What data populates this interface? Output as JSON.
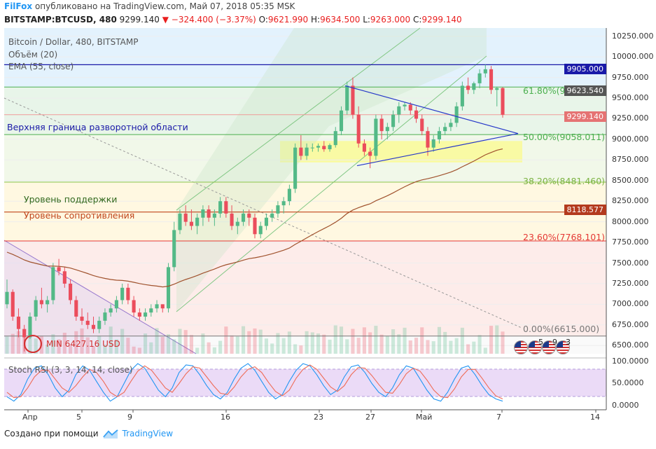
{
  "header": {
    "author": "FilFox",
    "published": "опубликовано на TradingView.com, Май 07, 2018 05:35 MSK",
    "symbol": "BITSTAMP:BTCUSD, 480",
    "last": "9299.140",
    "change": "−324.400 (−3.37%)",
    "o_label": "O:",
    "o": "9621.990",
    "h_label": "H:",
    "h": "9634.500",
    "l_label": "L:",
    "l": "9263.000",
    "c_label": "C:",
    "c": "9299.140"
  },
  "legend": {
    "title": "Bitcoin / Dollar, 480, BITSTAMP",
    "volume": "Объём (20)",
    "ema": "EMA (55, close)",
    "stoch": "Stoch RSI (3, 3, 14, 14, close)"
  },
  "annotations": {
    "upper_bound": "Верхняя граница разворотной области",
    "support": "Уровень поддержки",
    "resistance": "Уровень сопротивления",
    "min": "MIN 6427.16 USD"
  },
  "fib_labels": {
    "f618": "61.80%(9634.561)",
    "f50": "50.00%(9058.011)",
    "f382": "38.20%(8481.460)",
    "f236": "23.60%(7768.101)",
    "f0": "0.00%(6615.000)"
  },
  "price_labels": {
    "p1": "9905.000",
    "p2": "9623.540",
    "p3": "9299.140",
    "p4": "8118.577"
  },
  "price_label_colors": {
    "p1": "#1a1aa8",
    "p2": "#555555",
    "p3": "#e57373",
    "p4": "#b33a1e"
  },
  "y_axis": [
    "10250.000",
    "10000.000",
    "9750.000",
    "9500.000",
    "9250.000",
    "9000.000",
    "8750.000",
    "8500.000",
    "8250.000",
    "8000.000",
    "7750.000",
    "7500.000",
    "7250.000",
    "7000.000",
    "6750.000",
    "6500.000"
  ],
  "stoch_axis": [
    "100.0000",
    "50.0000",
    "0.0000"
  ],
  "x_axis": [
    "Апр",
    "5",
    "9",
    "16",
    "23",
    "27",
    "Май",
    "7",
    "14"
  ],
  "events": {
    "e1": "5",
    "e2": "9",
    "e3": "3"
  },
  "footer": {
    "created": "Создано при помощи",
    "brand": "TradingView"
  },
  "colors": {
    "up": "#53b987",
    "down": "#eb4d5c",
    "ema": "#a0522d",
    "fib618": "#4caf50",
    "fib50": "#4caf50",
    "fib382": "#8bc34a",
    "fib236": "#e53935",
    "fib0": "#777777",
    "upper_line": "#1a1aa8",
    "resistance_line": "#c0451b"
  },
  "chart_data": {
    "type": "candlestick",
    "y_scale": "linear",
    "ylim": [
      6400,
      10350
    ],
    "levels": {
      "upper_bound": 9905.0,
      "fib_61_8": 9634.561,
      "fib_50": 9058.011,
      "fib_38_2": 8481.46,
      "fib_23_6": 7768.101,
      "fib_0": 6615.0,
      "resistance": 8118.577,
      "last_close": 9299.14,
      "last_open": 9623.54
    },
    "candles": [
      [
        7000,
        7300,
        6950,
        7150
      ],
      [
        7150,
        7180,
        6800,
        6850
      ],
      [
        6850,
        6950,
        6600,
        6700
      ],
      [
        6700,
        6750,
        6427,
        6600
      ],
      [
        6600,
        6900,
        6580,
        6850
      ],
      [
        6850,
        7100,
        6800,
        7050
      ],
      [
        7050,
        7200,
        6950,
        7000
      ],
      [
        7000,
        7100,
        6900,
        7050
      ],
      [
        7050,
        7500,
        7000,
        7450
      ],
      [
        7450,
        7550,
        7350,
        7400
      ],
      [
        7400,
        7450,
        7200,
        7250
      ],
      [
        7250,
        7300,
        7000,
        7050
      ],
      [
        7050,
        7100,
        6800,
        6850
      ],
      [
        6850,
        6950,
        6750,
        6800
      ],
      [
        6800,
        6900,
        6700,
        6750
      ],
      [
        6750,
        6850,
        6650,
        6700
      ],
      [
        6700,
        6850,
        6650,
        6800
      ],
      [
        6800,
        6950,
        6750,
        6900
      ],
      [
        6900,
        7000,
        6850,
        6950
      ],
      [
        6950,
        7100,
        6900,
        7050
      ],
      [
        7050,
        7250,
        7000,
        7200
      ],
      [
        7200,
        7250,
        7000,
        7050
      ],
      [
        7050,
        7100,
        6850,
        6900
      ],
      [
        6900,
        6950,
        6800,
        6850
      ],
      [
        6850,
        6950,
        6800,
        6900
      ],
      [
        6900,
        7000,
        6850,
        6950
      ],
      [
        6950,
        7050,
        6900,
        7000
      ],
      [
        7000,
        7000,
        6900,
        6950
      ],
      [
        6950,
        7500,
        6900,
        7450
      ],
      [
        7450,
        8000,
        7400,
        7900
      ],
      [
        7900,
        8150,
        7850,
        8100
      ],
      [
        8100,
        8200,
        7950,
        8000
      ],
      [
        8000,
        8150,
        7900,
        7950
      ],
      [
        7950,
        8100,
        7850,
        8050
      ],
      [
        8050,
        8200,
        7950,
        8150
      ],
      [
        8150,
        8200,
        8000,
        8050
      ],
      [
        8050,
        8150,
        7950,
        8100
      ],
      [
        8100,
        8300,
        8050,
        8250
      ],
      [
        8250,
        8300,
        8050,
        8100
      ],
      [
        8100,
        8200,
        7900,
        7950
      ],
      [
        7950,
        8050,
        7850,
        8000
      ],
      [
        8000,
        8150,
        7950,
        8100
      ],
      [
        8100,
        8150,
        7950,
        8050
      ],
      [
        8050,
        8100,
        7800,
        7850
      ],
      [
        7850,
        8000,
        7800,
        7950
      ],
      [
        7950,
        8100,
        7900,
        8050
      ],
      [
        8050,
        8150,
        8000,
        8100
      ],
      [
        8100,
        8250,
        8050,
        8200
      ],
      [
        8200,
        8300,
        8100,
        8250
      ],
      [
        8250,
        8450,
        8200,
        8400
      ],
      [
        8400,
        8950,
        8350,
        8900
      ],
      [
        8900,
        9050,
        8750,
        8800
      ],
      [
        8800,
        8950,
        8750,
        8900
      ],
      [
        8900,
        8950,
        8850,
        8900
      ],
      [
        8900,
        8950,
        8850,
        8920
      ],
      [
        8920,
        8980,
        8850,
        8880
      ],
      [
        8880,
        8950,
        8850,
        8930
      ],
      [
        8930,
        9150,
        8900,
        9100
      ],
      [
        9100,
        9400,
        9050,
        9350
      ],
      [
        9350,
        9700,
        9300,
        9650
      ],
      [
        9650,
        9750,
        9250,
        9300
      ],
      [
        9300,
        9400,
        8900,
        8950
      ],
      [
        8950,
        9000,
        8800,
        8850
      ],
      [
        8850,
        8900,
        8650,
        8800
      ],
      [
        8800,
        9300,
        8750,
        9250
      ],
      [
        9250,
        9300,
        9000,
        9100
      ],
      [
        9100,
        9200,
        9000,
        9150
      ],
      [
        9150,
        9350,
        9100,
        9300
      ],
      [
        9300,
        9450,
        9200,
        9400
      ],
      [
        9400,
        9450,
        9350,
        9420
      ],
      [
        9420,
        9450,
        9300,
        9350
      ],
      [
        9350,
        9400,
        9200,
        9250
      ],
      [
        9250,
        9300,
        9050,
        9100
      ],
      [
        9100,
        9150,
        8800,
        8900
      ],
      [
        8900,
        9050,
        8850,
        9000
      ],
      [
        9000,
        9150,
        8950,
        9100
      ],
      [
        9100,
        9200,
        9050,
        9150
      ],
      [
        9150,
        9250,
        9100,
        9200
      ],
      [
        9200,
        9450,
        9150,
        9400
      ],
      [
        9400,
        9700,
        9350,
        9650
      ],
      [
        9650,
        9750,
        9550,
        9600
      ],
      [
        9600,
        9700,
        9550,
        9680
      ],
      [
        9680,
        9850,
        9620,
        9800
      ],
      [
        9800,
        9905,
        9750,
        9850
      ],
      [
        9850,
        9890,
        9550,
        9600
      ],
      [
        9600,
        9640,
        9400,
        9622
      ],
      [
        9622,
        9634,
        9263,
        9299
      ]
    ],
    "stoch_rsi": {
      "k": [
        20,
        10,
        25,
        60,
        85,
        90,
        70,
        40,
        20,
        35,
        70,
        90,
        80,
        55,
        30,
        10,
        20,
        50,
        80,
        95,
        85,
        60,
        35,
        20,
        40,
        75,
        92,
        90,
        70,
        45,
        25,
        15,
        30,
        60,
        85,
        95,
        80,
        55,
        30,
        15,
        25,
        55,
        80,
        95,
        90,
        70,
        45,
        25,
        35,
        65,
        88,
        92,
        75,
        50,
        30,
        20,
        40,
        70,
        90,
        85,
        60,
        35,
        15,
        10,
        30,
        60,
        85,
        90,
        70,
        45,
        25,
        15,
        10
      ],
      "d": [
        30,
        18,
        20,
        40,
        65,
        80,
        80,
        60,
        40,
        30,
        45,
        65,
        82,
        75,
        55,
        30,
        20,
        30,
        55,
        78,
        90,
        80,
        60,
        40,
        30,
        50,
        72,
        88,
        85,
        65,
        45,
        28,
        25,
        42,
        65,
        82,
        88,
        75,
        52,
        32,
        22,
        35,
        62,
        82,
        92,
        82,
        62,
        42,
        32,
        45,
        70,
        86,
        85,
        68,
        48,
        30,
        28,
        48,
        72,
        85,
        78,
        58,
        35,
        20,
        18,
        38,
        65,
        82,
        82,
        62,
        40,
        22,
        15
      ]
    },
    "x_ticks": [
      "Апр",
      "5",
      "9",
      "16",
      "23",
      "27",
      "Май",
      "7",
      "14"
    ]
  }
}
